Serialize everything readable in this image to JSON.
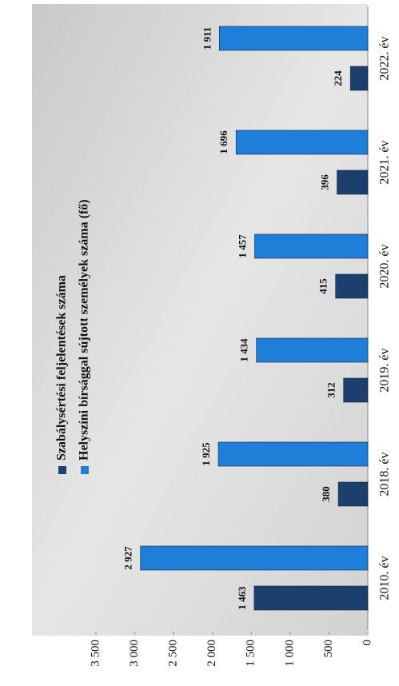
{
  "chart_data": {
    "type": "bar",
    "categories": [
      "2010. év",
      "2018. év",
      "2019. év",
      "2020. év",
      "2021. év",
      "2022. év"
    ],
    "series": [
      {
        "name": "Szabálysértési feljelentések száma",
        "color": "#1d3f6e",
        "values": [
          1463,
          380,
          312,
          415,
          396,
          224
        ],
        "value_labels": [
          "1 463",
          "380",
          "312",
          "415",
          "396",
          "224"
        ]
      },
      {
        "name": "Helyszíni bírsággal sújtott személyek száma (fő)",
        "color": "#1f7fd8",
        "values": [
          2927,
          1925,
          1434,
          1457,
          1696,
          1911
        ],
        "value_labels": [
          "2 927",
          "1 925",
          "1 434",
          "1 457",
          "1 696",
          "1 911"
        ]
      }
    ],
    "ylim": [
      0,
      3500
    ],
    "yticks": [
      0,
      500,
      {
        "value": 1000,
        "label": "1 000"
      },
      {
        "value": 1500,
        "label": "1 500"
      },
      {
        "value": 2000,
        "label": "2 000"
      },
      {
        "value": 2500,
        "label": "2 500"
      },
      {
        "value": 3000,
        "label": "3 000"
      },
      {
        "value": 3500,
        "label": "3 500"
      }
    ],
    "grid": false
  }
}
